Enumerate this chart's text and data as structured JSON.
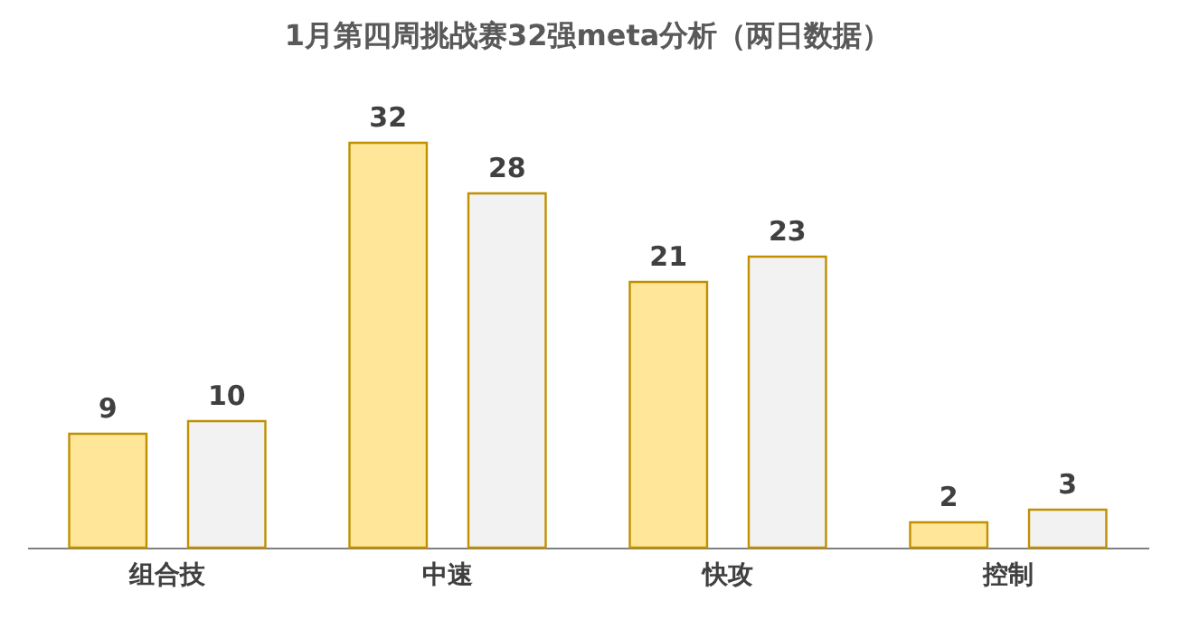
{
  "chart_data": {
    "type": "bar",
    "title": "1月第四周挑战赛32强meta分析（两日数据）",
    "categories": [
      "组合技",
      "中速",
      "快攻",
      "控制"
    ],
    "series": [
      {
        "color": "#ffe699",
        "values": [
          9,
          32,
          21,
          2
        ]
      },
      {
        "color": "#f2f2f2",
        "values": [
          10,
          28,
          23,
          3
        ]
      }
    ],
    "data_labels": true,
    "grid": false,
    "legend": false
  }
}
